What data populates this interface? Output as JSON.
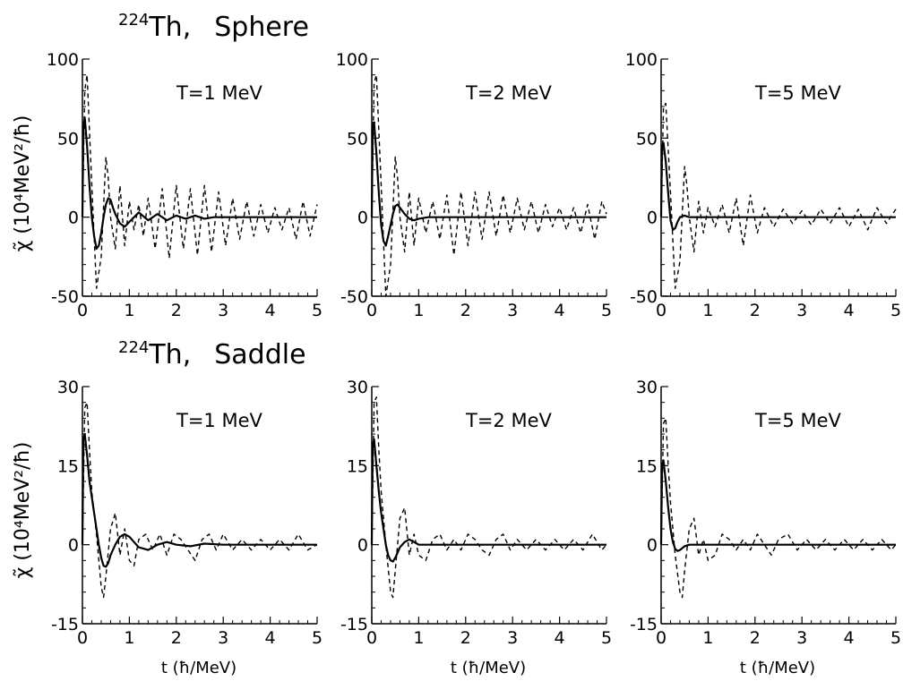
{
  "row_titles": [
    {
      "isotope_mass": "224",
      "element": "Th,",
      "shape": "Sphere"
    },
    {
      "isotope_mass": "224",
      "element": "Th,",
      "shape": "Saddle"
    }
  ],
  "y_axis_label": {
    "symbol": "χ̃",
    "text": "(10⁴MeV²/ħ)"
  },
  "x_axis_label": "t  (ħ/MeV)",
  "chart_data": [
    {
      "type": "line",
      "row": "Sphere",
      "annotation": "T=1  MeV",
      "xlim": [
        0,
        5
      ],
      "ylim": [
        -50,
        100
      ],
      "xticks": [
        "0",
        "1",
        "2",
        "3",
        "4",
        "5"
      ],
      "yticks": [
        "-50",
        "0",
        "50",
        "100"
      ],
      "series": [
        {
          "style": "solid",
          "x": [
            0,
            0.02,
            0.05,
            0.1,
            0.15,
            0.2,
            0.25,
            0.3,
            0.35,
            0.4,
            0.45,
            0.5,
            0.55,
            0.6,
            0.65,
            0.7,
            0.8,
            0.9,
            1.0,
            1.2,
            1.4,
            1.6,
            1.8,
            2.0,
            2.2,
            2.4,
            2.6,
            2.8,
            3.0,
            3.3,
            3.6,
            4.0,
            4.5,
            5.0
          ],
          "y": [
            0,
            55,
            63,
            45,
            20,
            0,
            -12,
            -20,
            -18,
            -10,
            0,
            8,
            12,
            11,
            6,
            2,
            -4,
            -6,
            -3,
            3,
            -2,
            2,
            -2,
            1,
            -1,
            1,
            -1,
            0,
            0,
            0,
            0,
            0,
            0,
            0
          ]
        },
        {
          "style": "dashed",
          "x": [
            0,
            0.05,
            0.1,
            0.2,
            0.3,
            0.4,
            0.5,
            0.55,
            0.6,
            0.7,
            0.8,
            0.9,
            1.0,
            1.1,
            1.2,
            1.3,
            1.4,
            1.55,
            1.7,
            1.85,
            2.0,
            2.15,
            2.3,
            2.45,
            2.6,
            2.75,
            2.9,
            3.05,
            3.2,
            3.35,
            3.5,
            3.65,
            3.8,
            3.95,
            4.1,
            4.25,
            4.4,
            4.55,
            4.7,
            4.85,
            5.0
          ],
          "y": [
            0,
            80,
            90,
            20,
            -45,
            -25,
            38,
            25,
            0,
            -20,
            20,
            -18,
            10,
            -8,
            8,
            -12,
            12,
            -20,
            18,
            -26,
            20,
            -20,
            18,
            -24,
            20,
            -22,
            16,
            -18,
            12,
            -14,
            10,
            -12,
            8,
            -10,
            6,
            -8,
            6,
            -14,
            10,
            -12,
            8
          ]
        }
      ]
    },
    {
      "type": "line",
      "row": "Sphere",
      "annotation": "T=2  MeV",
      "xlim": [
        0,
        5
      ],
      "ylim": [
        -50,
        100
      ],
      "xticks": [
        "0",
        "1",
        "2",
        "3",
        "4",
        "5"
      ],
      "yticks": [
        "-50",
        "0",
        "50",
        "100"
      ],
      "series": [
        {
          "style": "solid",
          "x": [
            0,
            0.02,
            0.05,
            0.1,
            0.15,
            0.2,
            0.25,
            0.3,
            0.35,
            0.4,
            0.45,
            0.5,
            0.55,
            0.6,
            0.7,
            0.8,
            0.9,
            1.0,
            1.2,
            1.5,
            2.0,
            3.0,
            4.0,
            5.0
          ],
          "y": [
            0,
            58,
            60,
            40,
            15,
            -5,
            -15,
            -18,
            -12,
            -5,
            2,
            7,
            8,
            6,
            2,
            -1,
            -2,
            -1,
            0,
            0,
            0,
            0,
            0,
            0
          ]
        },
        {
          "style": "dashed",
          "x": [
            0,
            0.05,
            0.1,
            0.2,
            0.3,
            0.4,
            0.5,
            0.55,
            0.6,
            0.7,
            0.8,
            0.9,
            1.0,
            1.15,
            1.3,
            1.45,
            1.6,
            1.75,
            1.9,
            2.05,
            2.2,
            2.35,
            2.5,
            2.65,
            2.8,
            2.95,
            3.1,
            3.25,
            3.4,
            3.55,
            3.7,
            3.85,
            4.0,
            4.15,
            4.3,
            4.45,
            4.6,
            4.75,
            4.9,
            5.0
          ],
          "y": [
            0,
            85,
            90,
            20,
            -50,
            -30,
            38,
            25,
            0,
            -22,
            16,
            -18,
            12,
            -10,
            10,
            -14,
            14,
            -24,
            16,
            -18,
            16,
            -14,
            16,
            -12,
            14,
            -10,
            12,
            -8,
            10,
            -10,
            8,
            -6,
            6,
            -8,
            6,
            -10,
            8,
            -14,
            10,
            2
          ]
        }
      ]
    },
    {
      "type": "line",
      "row": "Sphere",
      "annotation": "T=5  MeV",
      "xlim": [
        0,
        5
      ],
      "ylim": [
        -50,
        100
      ],
      "xticks": [
        "0",
        "1",
        "2",
        "3",
        "4",
        "5"
      ],
      "yticks": [
        "-50",
        "0",
        "50",
        "100"
      ],
      "series": [
        {
          "style": "solid",
          "x": [
            0,
            0.02,
            0.05,
            0.1,
            0.15,
            0.2,
            0.25,
            0.3,
            0.35,
            0.4,
            0.5,
            0.6,
            0.8,
            1.0,
            2.0,
            3.0,
            4.0,
            5.0
          ],
          "y": [
            0,
            45,
            47,
            35,
            15,
            -2,
            -8,
            -7,
            -3,
            0,
            1,
            0,
            0,
            0,
            0,
            0,
            0,
            0
          ]
        },
        {
          "style": "dashed",
          "x": [
            0,
            0.05,
            0.1,
            0.2,
            0.3,
            0.4,
            0.5,
            0.55,
            0.6,
            0.7,
            0.8,
            0.9,
            1.0,
            1.15,
            1.3,
            1.45,
            1.6,
            1.75,
            1.9,
            2.05,
            2.2,
            2.4,
            2.6,
            2.8,
            3.0,
            3.2,
            3.4,
            3.6,
            3.8,
            4.0,
            4.2,
            4.4,
            4.6,
            4.8,
            5.0
          ],
          "y": [
            0,
            70,
            72,
            15,
            -45,
            -28,
            32,
            20,
            0,
            -22,
            10,
            -10,
            6,
            -6,
            8,
            -10,
            12,
            -18,
            14,
            -10,
            6,
            -6,
            5,
            -4,
            4,
            -5,
            5,
            -4,
            6,
            -6,
            5,
            -8,
            6,
            -4,
            5
          ]
        }
      ]
    },
    {
      "type": "line",
      "row": "Saddle",
      "annotation": "T=1  MeV",
      "xlim": [
        0,
        5
      ],
      "ylim": [
        -15,
        30
      ],
      "xticks": [
        "0",
        "1",
        "2",
        "3",
        "4",
        "5"
      ],
      "yticks": [
        "-15",
        "0",
        "15",
        "30"
      ],
      "series": [
        {
          "style": "solid",
          "x": [
            0,
            0.02,
            0.05,
            0.1,
            0.15,
            0.2,
            0.25,
            0.3,
            0.35,
            0.4,
            0.45,
            0.5,
            0.55,
            0.6,
            0.7,
            0.8,
            0.9,
            1.0,
            1.1,
            1.2,
            1.4,
            1.6,
            1.8,
            2.0,
            2.3,
            2.6,
            3.0,
            3.5,
            4.0,
            5.0
          ],
          "y": [
            0,
            20,
            21,
            17,
            12,
            9,
            6,
            3,
            0,
            -2.5,
            -4,
            -4.2,
            -3.5,
            -2,
            0,
            1.5,
            2,
            1.5,
            0.5,
            -0.5,
            -1,
            0,
            0.5,
            0,
            -0.3,
            0.2,
            0,
            0,
            0,
            0
          ]
        },
        {
          "style": "dashed",
          "x": [
            0,
            0.05,
            0.1,
            0.15,
            0.2,
            0.3,
            0.4,
            0.45,
            0.5,
            0.6,
            0.7,
            0.8,
            0.9,
            1.0,
            1.1,
            1.2,
            1.35,
            1.5,
            1.65,
            1.8,
            1.95,
            2.1,
            2.25,
            2.4,
            2.55,
            2.7,
            2.85,
            3.0,
            3.2,
            3.4,
            3.6,
            3.8,
            4.0,
            4.2,
            4.4,
            4.6,
            4.8,
            5.0
          ],
          "y": [
            0,
            26,
            27,
            18,
            10,
            2,
            -8,
            -10,
            -6,
            3,
            6,
            -2,
            3,
            -3,
            -4,
            1,
            2,
            -1,
            2,
            -2,
            2,
            1,
            -1,
            -3,
            1,
            2,
            -1,
            2,
            -1,
            1,
            -1,
            1,
            -1,
            1,
            -1,
            2,
            -1,
            0
          ]
        }
      ]
    },
    {
      "type": "line",
      "row": "Saddle",
      "annotation": "T=2  MeV",
      "xlim": [
        0,
        5
      ],
      "ylim": [
        -15,
        30
      ],
      "xticks": [
        "0",
        "1",
        "2",
        "3",
        "4",
        "5"
      ],
      "yticks": [
        "-15",
        "0",
        "15",
        "30"
      ],
      "series": [
        {
          "style": "solid",
          "x": [
            0,
            0.02,
            0.05,
            0.1,
            0.15,
            0.2,
            0.25,
            0.3,
            0.35,
            0.4,
            0.45,
            0.5,
            0.55,
            0.6,
            0.7,
            0.8,
            0.9,
            1.0,
            1.2,
            1.5,
            2.0,
            3.0,
            4.0,
            5.0
          ],
          "y": [
            0,
            19,
            20,
            15,
            10,
            6,
            3,
            0,
            -2,
            -3,
            -3.2,
            -2.5,
            -1.5,
            -0.5,
            0.5,
            1,
            0.5,
            0,
            0,
            0,
            0,
            0,
            0,
            0
          ]
        },
        {
          "style": "dashed",
          "x": [
            0,
            0.05,
            0.1,
            0.15,
            0.2,
            0.3,
            0.4,
            0.45,
            0.5,
            0.6,
            0.7,
            0.8,
            0.9,
            1.0,
            1.15,
            1.3,
            1.45,
            1.6,
            1.75,
            1.9,
            2.05,
            2.2,
            2.35,
            2.5,
            2.65,
            2.8,
            2.95,
            3.1,
            3.3,
            3.5,
            3.7,
            3.9,
            4.1,
            4.3,
            4.5,
            4.7,
            4.9,
            5.0
          ],
          "y": [
            0,
            27,
            28,
            18,
            10,
            0,
            -9,
            -10,
            -5,
            5,
            7,
            -2,
            2,
            -2,
            -3,
            1,
            2,
            -1,
            1,
            -1,
            2,
            1,
            -1,
            -2,
            1,
            2,
            -1,
            1,
            -1,
            1,
            -1,
            1,
            -1,
            1,
            -1,
            2,
            -1,
            0
          ]
        }
      ]
    },
    {
      "type": "line",
      "row": "Saddle",
      "annotation": "T=5  MeV",
      "xlim": [
        0,
        5
      ],
      "ylim": [
        -15,
        30
      ],
      "xticks": [
        "0",
        "1",
        "2",
        "3",
        "4",
        "5"
      ],
      "yticks": [
        "-15",
        "0",
        "15",
        "30"
      ],
      "series": [
        {
          "style": "solid",
          "x": [
            0,
            0.02,
            0.05,
            0.1,
            0.15,
            0.2,
            0.25,
            0.3,
            0.35,
            0.4,
            0.5,
            0.6,
            0.8,
            1.0,
            2.0,
            3.0,
            4.0,
            5.0
          ],
          "y": [
            0,
            15,
            16,
            12,
            7,
            3,
            0.5,
            -0.8,
            -1.2,
            -1,
            -0.3,
            0,
            0,
            0,
            0,
            0,
            0,
            0
          ]
        },
        {
          "style": "dashed",
          "x": [
            0,
            0.05,
            0.1,
            0.15,
            0.2,
            0.3,
            0.4,
            0.45,
            0.5,
            0.6,
            0.7,
            0.8,
            0.9,
            1.0,
            1.15,
            1.3,
            1.45,
            1.6,
            1.75,
            1.9,
            2.05,
            2.2,
            2.35,
            2.5,
            2.7,
            2.9,
            3.1,
            3.3,
            3.5,
            3.7,
            3.9,
            4.1,
            4.3,
            4.5,
            4.7,
            4.9,
            5.0
          ],
          "y": [
            0,
            23,
            24,
            15,
            8,
            -2,
            -9,
            -10,
            -5,
            3,
            5,
            -2,
            1,
            -3,
            -2,
            2,
            1,
            -1,
            1,
            -1,
            2,
            0,
            -2,
            1,
            2,
            -1,
            1,
            -1,
            1,
            -1,
            1,
            -1,
            1,
            -1,
            1,
            -1,
            0
          ]
        }
      ]
    }
  ]
}
